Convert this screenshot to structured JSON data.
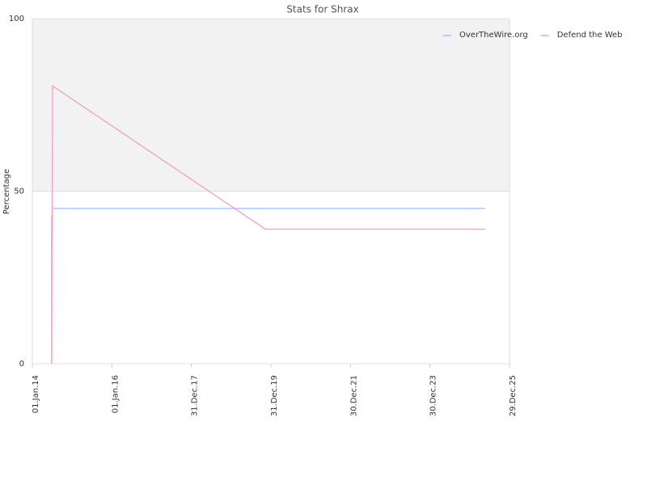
{
  "chart_data": {
    "type": "line",
    "title": "Stats for Shrax",
    "y_label": "Percentage",
    "series": [
      {
        "name": "OverTheWire.org",
        "color": "#99c2ff",
        "x": [
          "2014-06-27",
          "2014-06-27",
          "2014-06-30",
          "2014-07-03",
          "2025-05-20"
        ],
        "values": [
          0,
          43,
          23,
          45,
          45
        ]
      },
      {
        "name": "Defend the Web",
        "color": "#f0a0c8",
        "x": [
          "2014-06-28",
          "2014-07-05",
          "2019-11-09",
          "2025-05-20"
        ],
        "values": [
          0,
          80.5,
          39,
          39
        ]
      }
    ],
    "xlim": [
      "2014-01-01",
      "2025-12-29"
    ],
    "xticks": [
      {
        "value": "2014-01-01",
        "label": "01.Jan.14"
      },
      {
        "value": "2016-01-01",
        "label": "01.Jan.16"
      },
      {
        "value": "2017-12-31",
        "label": "31.Dec.17"
      },
      {
        "value": "2019-12-31",
        "label": "31.Dec.19"
      },
      {
        "value": "2021-12-30",
        "label": "30.Dec.21"
      },
      {
        "value": "2023-12-30",
        "label": "30.Dec.23"
      },
      {
        "value": "2025-12-29",
        "label": "29.Dec.25"
      }
    ],
    "ylim": [
      0,
      100
    ],
    "yticks": [
      0,
      50,
      100
    ],
    "shaded_band": {
      "from": 50,
      "to": 100,
      "color": "#f2f2f2"
    },
    "grid": true,
    "legend": "top-right"
  }
}
